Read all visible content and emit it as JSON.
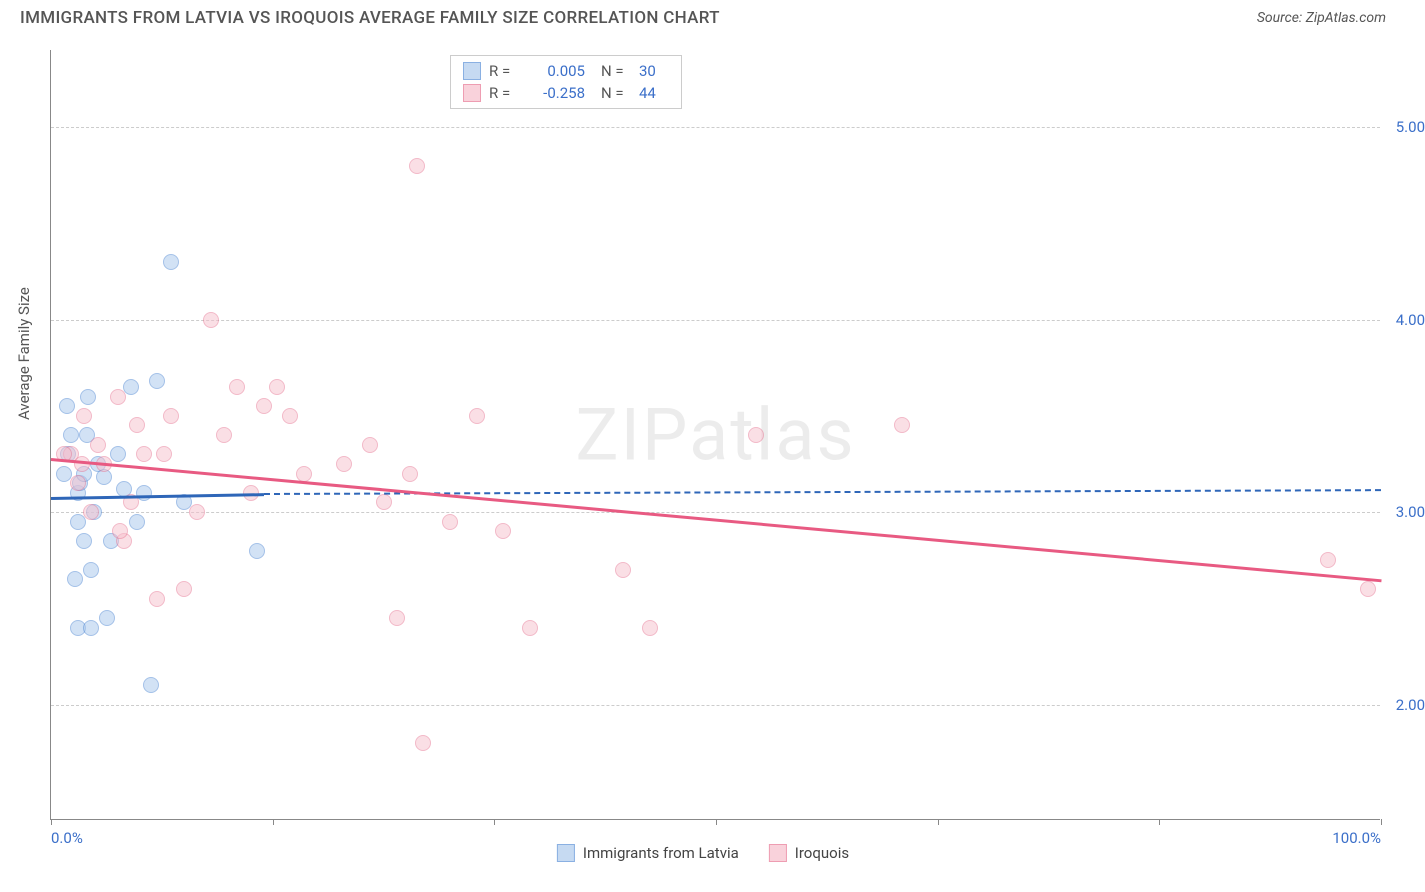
{
  "header": {
    "title": "IMMIGRANTS FROM LATVIA VS IROQUOIS AVERAGE FAMILY SIZE CORRELATION CHART",
    "source": "Source: ZipAtlas.com"
  },
  "watermark": "ZIPatlas",
  "chart": {
    "type": "scatter",
    "background_color": "#ffffff",
    "grid_color": "#cccccc",
    "axis_color": "#888888",
    "xlim": [
      0,
      100
    ],
    "ylim": [
      1.4,
      5.4
    ],
    "y_ticks": [
      2.0,
      3.0,
      4.0,
      5.0
    ],
    "y_tick_labels": [
      "2.00",
      "3.00",
      "4.00",
      "5.00"
    ],
    "x_ticks": [
      0,
      16.67,
      33.33,
      50,
      66.67,
      83.33,
      100
    ],
    "x_tick_labels_shown": {
      "0": "0.0%",
      "100": "100.0%"
    },
    "y_axis_label": "Average Family Size",
    "tick_label_color": "#3b6fc9",
    "tick_label_fontsize": 15,
    "series": [
      {
        "name": "Immigrants from Latvia",
        "marker_fill": "#aecbed",
        "marker_stroke": "#5a8fd6",
        "marker_fill_opacity": 0.55,
        "trend_color": "#2e66b8",
        "trend_solid": {
          "x1": 0,
          "y1": 3.08,
          "x2": 16,
          "y2": 3.1
        },
        "trend_dash": {
          "x1": 16,
          "y1": 3.1,
          "x2": 100,
          "y2": 3.12
        },
        "r": "0.005",
        "n": "30",
        "points": [
          [
            1.0,
            3.2
          ],
          [
            1.2,
            3.55
          ],
          [
            1.5,
            3.4
          ],
          [
            1.8,
            2.65
          ],
          [
            2.0,
            2.4
          ],
          [
            2.0,
            3.1
          ],
          [
            2.0,
            2.95
          ],
          [
            2.2,
            3.15
          ],
          [
            2.5,
            2.85
          ],
          [
            2.5,
            3.2
          ],
          [
            2.8,
            3.6
          ],
          [
            3.0,
            2.7
          ],
          [
            3.0,
            2.4
          ],
          [
            3.2,
            3.0
          ],
          [
            3.5,
            3.25
          ],
          [
            4.0,
            3.18
          ],
          [
            4.5,
            2.85
          ],
          [
            5.0,
            3.3
          ],
          [
            5.5,
            3.12
          ],
          [
            6.0,
            3.65
          ],
          [
            6.5,
            2.95
          ],
          [
            7.0,
            3.1
          ],
          [
            8.0,
            3.68
          ],
          [
            9.0,
            4.3
          ],
          [
            10.0,
            3.05
          ],
          [
            7.5,
            2.1
          ],
          [
            4.2,
            2.45
          ],
          [
            15.5,
            2.8
          ],
          [
            2.7,
            3.4
          ],
          [
            1.3,
            3.3
          ]
        ]
      },
      {
        "name": "Iroquois",
        "marker_fill": "#f7c0cd",
        "marker_stroke": "#e77592",
        "marker_fill_opacity": 0.5,
        "trend_color": "#e85a82",
        "trend_solid": {
          "x1": 0,
          "y1": 3.28,
          "x2": 100,
          "y2": 2.65
        },
        "trend_dash": null,
        "r": "-0.258",
        "n": "44",
        "points": [
          [
            1.5,
            3.3
          ],
          [
            2.0,
            3.15
          ],
          [
            2.5,
            3.5
          ],
          [
            3.0,
            3.0
          ],
          [
            3.5,
            3.35
          ],
          [
            4.0,
            3.25
          ],
          [
            5.0,
            3.6
          ],
          [
            5.5,
            2.85
          ],
          [
            6.0,
            3.05
          ],
          [
            6.5,
            3.45
          ],
          [
            7.0,
            3.3
          ],
          [
            8.0,
            2.55
          ],
          [
            8.5,
            3.3
          ],
          [
            9.0,
            3.5
          ],
          [
            10.0,
            2.6
          ],
          [
            11.0,
            3.0
          ],
          [
            12.0,
            4.0
          ],
          [
            13.0,
            3.4
          ],
          [
            14.0,
            3.65
          ],
          [
            15.0,
            3.1
          ],
          [
            16.0,
            3.55
          ],
          [
            17.0,
            3.65
          ],
          [
            18.0,
            3.5
          ],
          [
            19.0,
            3.2
          ],
          [
            22.0,
            3.25
          ],
          [
            24.0,
            3.35
          ],
          [
            25.0,
            3.05
          ],
          [
            26.0,
            2.45
          ],
          [
            27.0,
            3.2
          ],
          [
            27.5,
            4.8
          ],
          [
            28.0,
            1.8
          ],
          [
            30.0,
            2.95
          ],
          [
            32.0,
            3.5
          ],
          [
            34.0,
            2.9
          ],
          [
            36.0,
            2.4
          ],
          [
            43.0,
            2.7
          ],
          [
            45.0,
            2.4
          ],
          [
            53.0,
            3.4
          ],
          [
            64.0,
            3.45
          ],
          [
            96.0,
            2.75
          ],
          [
            99.0,
            2.6
          ],
          [
            5.2,
            2.9
          ],
          [
            1.0,
            3.3
          ],
          [
            2.3,
            3.25
          ]
        ]
      }
    ]
  },
  "legend_top": {
    "rows": [
      {
        "swatch_fill": "#aecbed",
        "swatch_stroke": "#5a8fd6",
        "r": "0.005",
        "n": "30"
      },
      {
        "swatch_fill": "#f7c0cd",
        "swatch_stroke": "#e77592",
        "r": "-0.258",
        "n": "44"
      }
    ],
    "r_label": "R =",
    "n_label": "N ="
  },
  "legend_bottom": {
    "items": [
      {
        "swatch_fill": "#aecbed",
        "swatch_stroke": "#5a8fd6",
        "label": "Immigrants from Latvia"
      },
      {
        "swatch_fill": "#f7c0cd",
        "swatch_stroke": "#e77592",
        "label": "Iroquois"
      }
    ]
  }
}
